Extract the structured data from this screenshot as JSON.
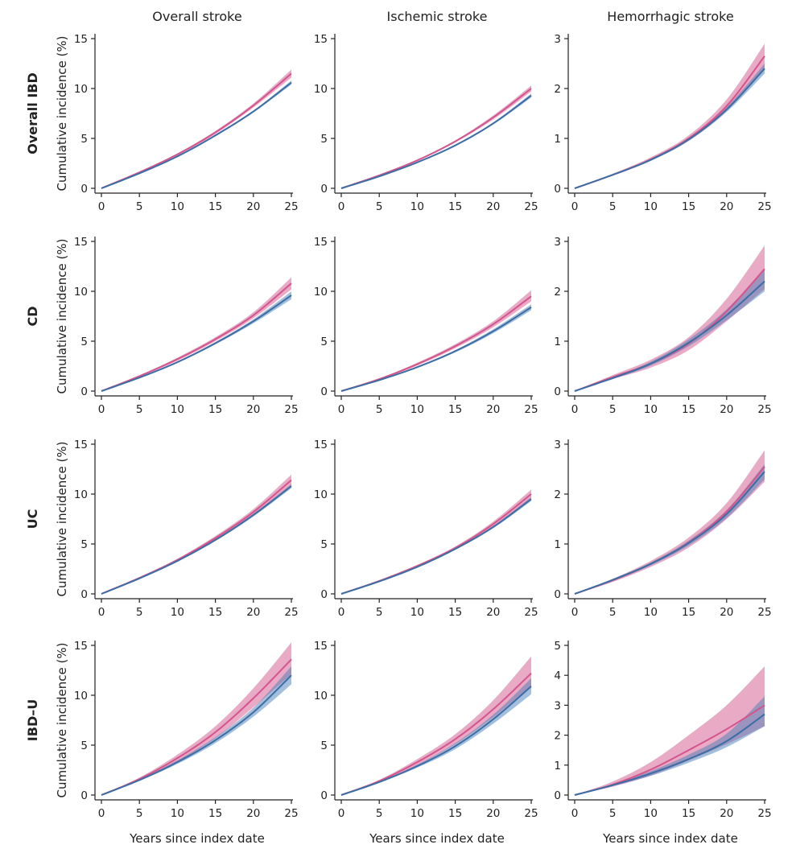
{
  "chart_data": {
    "type": "line",
    "column_titles": [
      "Overall stroke",
      "Ischemic stroke",
      "Hemorrhagic stroke"
    ],
    "row_titles": [
      "Overall IBD",
      "CD",
      "UC",
      "IBD–U"
    ],
    "xlabel": "Years since index date",
    "ylabel": "Cumulative incidence (%)",
    "xlim": [
      0,
      25
    ],
    "xticks": [
      "0",
      "5",
      "10",
      "15",
      "20",
      "25"
    ],
    "x": [
      0,
      5,
      10,
      15,
      20,
      25
    ],
    "colors": {
      "pink": "#d4558e",
      "blue": "#3b6ea5",
      "pink_band": "#d4558e",
      "blue_band": "#4a7fb8"
    },
    "panels": [
      {
        "row": 0,
        "col": 0,
        "ylim": [
          0,
          15
        ],
        "yticks": [
          "0",
          "5",
          "10",
          "15"
        ],
        "series": [
          {
            "color": "pink",
            "values": [
              0,
              1.6,
              3.4,
              5.6,
              8.3,
              11.5
            ],
            "lower": [
              0,
              1.55,
              3.3,
              5.45,
              8.1,
              11.1
            ],
            "upper": [
              0,
              1.65,
              3.5,
              5.75,
              8.5,
              11.9
            ]
          },
          {
            "color": "blue",
            "values": [
              0,
              1.5,
              3.2,
              5.3,
              7.7,
              10.6
            ],
            "lower": [
              0,
              1.47,
              3.15,
              5.2,
              7.6,
              10.4
            ],
            "upper": [
              0,
              1.53,
              3.25,
              5.4,
              7.8,
              10.8
            ]
          }
        ]
      },
      {
        "row": 0,
        "col": 1,
        "ylim": [
          0,
          15
        ],
        "yticks": [
          "0",
          "5",
          "10",
          "15"
        ],
        "series": [
          {
            "color": "pink",
            "values": [
              0,
              1.3,
              2.8,
              4.7,
              7.1,
              10.0
            ],
            "lower": [
              0,
              1.25,
              2.72,
              4.6,
              6.9,
              9.7
            ],
            "upper": [
              0,
              1.35,
              2.88,
              4.8,
              7.3,
              10.3
            ]
          },
          {
            "color": "blue",
            "values": [
              0,
              1.2,
              2.6,
              4.3,
              6.5,
              9.3
            ],
            "lower": [
              0,
              1.17,
              2.55,
              4.22,
              6.4,
              9.1
            ],
            "upper": [
              0,
              1.23,
              2.65,
              4.38,
              6.6,
              9.5
            ]
          }
        ]
      },
      {
        "row": 0,
        "col": 2,
        "ylim": [
          0,
          3
        ],
        "yticks": [
          "0",
          "1",
          "2",
          "3"
        ],
        "series": [
          {
            "color": "pink",
            "values": [
              0,
              0.27,
              0.58,
              1.0,
              1.65,
              2.65
            ],
            "lower": [
              0,
              0.25,
              0.55,
              0.95,
              1.55,
              2.4
            ],
            "upper": [
              0,
              0.29,
              0.62,
              1.06,
              1.78,
              2.9
            ]
          },
          {
            "color": "blue",
            "values": [
              0,
              0.27,
              0.57,
              0.98,
              1.58,
              2.4
            ],
            "lower": [
              0,
              0.26,
              0.55,
              0.95,
              1.53,
              2.3
            ],
            "upper": [
              0,
              0.28,
              0.59,
              1.01,
              1.63,
              2.5
            ]
          }
        ]
      },
      {
        "row": 1,
        "col": 0,
        "ylim": [
          0,
          15
        ],
        "yticks": [
          "0",
          "5",
          "10",
          "15"
        ],
        "series": [
          {
            "color": "pink",
            "values": [
              0,
              1.5,
              3.2,
              5.2,
              7.6,
              10.8
            ],
            "lower": [
              0,
              1.43,
              3.05,
              5.0,
              7.3,
              10.2
            ],
            "upper": [
              0,
              1.57,
              3.35,
              5.4,
              7.9,
              11.4
            ]
          },
          {
            "color": "blue",
            "values": [
              0,
              1.35,
              2.9,
              4.8,
              7.0,
              9.6
            ],
            "lower": [
              0,
              1.3,
              2.82,
              4.68,
              6.8,
              9.2
            ],
            "upper": [
              0,
              1.4,
              2.98,
              4.92,
              7.2,
              10.0
            ]
          }
        ]
      },
      {
        "row": 1,
        "col": 1,
        "ylim": [
          0,
          15
        ],
        "yticks": [
          "0",
          "5",
          "10",
          "15"
        ],
        "series": [
          {
            "color": "pink",
            "values": [
              0,
              1.2,
              2.7,
              4.5,
              6.7,
              9.5
            ],
            "lower": [
              0,
              1.14,
              2.56,
              4.3,
              6.4,
              9.0
            ],
            "upper": [
              0,
              1.26,
              2.84,
              4.7,
              7.0,
              10.1
            ]
          },
          {
            "color": "blue",
            "values": [
              0,
              1.1,
              2.4,
              4.0,
              6.0,
              8.4
            ],
            "lower": [
              0,
              1.06,
              2.33,
              3.88,
              5.8,
              8.1
            ],
            "upper": [
              0,
              1.14,
              2.47,
              4.12,
              6.2,
              8.7
            ]
          }
        ]
      },
      {
        "row": 1,
        "col": 2,
        "ylim": [
          0,
          3
        ],
        "yticks": [
          "0",
          "1",
          "2",
          "3"
        ],
        "series": [
          {
            "color": "pink",
            "values": [
              0,
              0.28,
              0.55,
              0.95,
              1.6,
              2.45
            ],
            "lower": [
              0,
              0.24,
              0.47,
              0.82,
              1.4,
              2.05
            ],
            "upper": [
              0,
              0.32,
              0.63,
              1.08,
              1.85,
              2.92
            ]
          },
          {
            "color": "blue",
            "values": [
              0,
              0.26,
              0.55,
              0.97,
              1.52,
              2.2
            ],
            "lower": [
              0,
              0.24,
              0.51,
              0.9,
              1.42,
              2.0
            ],
            "upper": [
              0,
              0.28,
              0.59,
              1.04,
              1.64,
              2.45
            ]
          }
        ]
      },
      {
        "row": 2,
        "col": 0,
        "ylim": [
          0,
          15
        ],
        "yticks": [
          "0",
          "5",
          "10",
          "15"
        ],
        "series": [
          {
            "color": "pink",
            "values": [
              0,
              1.6,
              3.4,
              5.6,
              8.2,
              11.4
            ],
            "lower": [
              0,
              1.54,
              3.28,
              5.4,
              7.9,
              10.9
            ],
            "upper": [
              0,
              1.66,
              3.52,
              5.8,
              8.5,
              11.95
            ]
          },
          {
            "color": "blue",
            "values": [
              0,
              1.55,
              3.3,
              5.4,
              7.9,
              10.8
            ],
            "lower": [
              0,
              1.52,
              3.24,
              5.3,
              7.75,
              10.6
            ],
            "upper": [
              0,
              1.58,
              3.36,
              5.5,
              8.05,
              11.0
            ]
          }
        ]
      },
      {
        "row": 2,
        "col": 1,
        "ylim": [
          0,
          15
        ],
        "yticks": [
          "0",
          "5",
          "10",
          "15"
        ],
        "series": [
          {
            "color": "pink",
            "values": [
              0,
              1.3,
              2.8,
              4.6,
              7.0,
              10.0
            ],
            "lower": [
              0,
              1.25,
              2.7,
              4.45,
              6.75,
              9.6
            ],
            "upper": [
              0,
              1.35,
              2.9,
              4.75,
              7.25,
              10.45
            ]
          },
          {
            "color": "blue",
            "values": [
              0,
              1.25,
              2.7,
              4.5,
              6.7,
              9.5
            ],
            "lower": [
              0,
              1.22,
              2.65,
              4.42,
              6.58,
              9.3
            ],
            "upper": [
              0,
              1.28,
              2.75,
              4.58,
              6.82,
              9.7
            ]
          }
        ]
      },
      {
        "row": 2,
        "col": 2,
        "ylim": [
          0,
          3
        ],
        "yticks": [
          "0",
          "1",
          "2",
          "3"
        ],
        "series": [
          {
            "color": "pink",
            "values": [
              0,
              0.27,
              0.6,
              1.03,
              1.65,
              2.55
            ],
            "lower": [
              0,
              0.24,
              0.54,
              0.93,
              1.5,
              2.25
            ],
            "upper": [
              0,
              0.3,
              0.66,
              1.13,
              1.82,
              2.88
            ]
          },
          {
            "color": "blue",
            "values": [
              0,
              0.28,
              0.6,
              1.02,
              1.6,
              2.45
            ],
            "lower": [
              0,
              0.26,
              0.57,
              0.97,
              1.52,
              2.3
            ],
            "upper": [
              0,
              0.3,
              0.63,
              1.07,
              1.68,
              2.6
            ]
          }
        ]
      },
      {
        "row": 3,
        "col": 0,
        "ylim": [
          0,
          15
        ],
        "yticks": [
          "0",
          "5",
          "10",
          "15"
        ],
        "series": [
          {
            "color": "pink",
            "values": [
              0,
              1.6,
              3.7,
              6.3,
              9.7,
              13.6
            ],
            "lower": [
              0,
              1.45,
              3.35,
              5.7,
              8.8,
              12.1
            ],
            "upper": [
              0,
              1.75,
              4.05,
              6.9,
              10.7,
              15.3
            ]
          },
          {
            "color": "blue",
            "values": [
              0,
              1.5,
              3.3,
              5.5,
              8.3,
              12.0
            ],
            "lower": [
              0,
              1.42,
              3.12,
              5.2,
              7.85,
              11.1
            ],
            "upper": [
              0,
              1.58,
              3.48,
              5.8,
              8.75,
              12.9
            ]
          }
        ]
      },
      {
        "row": 3,
        "col": 1,
        "ylim": [
          0,
          15
        ],
        "yticks": [
          "0",
          "5",
          "10",
          "15"
        ],
        "series": [
          {
            "color": "pink",
            "values": [
              0,
              1.4,
              3.3,
              5.6,
              8.6,
              12.2
            ],
            "lower": [
              0,
              1.28,
              3.0,
              5.1,
              7.8,
              10.9
            ],
            "upper": [
              0,
              1.52,
              3.6,
              6.1,
              9.5,
              13.9
            ]
          },
          {
            "color": "blue",
            "values": [
              0,
              1.3,
              2.9,
              4.9,
              7.6,
              10.9
            ],
            "lower": [
              0,
              1.23,
              2.75,
              4.6,
              7.15,
              10.1
            ],
            "upper": [
              0,
              1.37,
              3.05,
              5.2,
              8.05,
              11.7
            ]
          }
        ]
      },
      {
        "row": 3,
        "col": 2,
        "ylim": [
          0,
          5
        ],
        "yticks": [
          "0",
          "1",
          "2",
          "3",
          "4",
          "5"
        ],
        "series": [
          {
            "color": "pink",
            "values": [
              0,
              0.35,
              0.85,
              1.5,
              2.2,
              3.0
            ],
            "lower": [
              0,
              0.28,
              0.65,
              1.15,
              1.7,
              2.3
            ],
            "upper": [
              0,
              0.45,
              1.1,
              2.0,
              3.0,
              4.3
            ]
          },
          {
            "color": "blue",
            "values": [
              0,
              0.33,
              0.72,
              1.2,
              1.8,
              2.7
            ],
            "lower": [
              0,
              0.3,
              0.64,
              1.08,
              1.6,
              2.3
            ],
            "upper": [
              0,
              0.36,
              0.8,
              1.35,
              2.05,
              3.3
            ]
          }
        ]
      }
    ]
  }
}
